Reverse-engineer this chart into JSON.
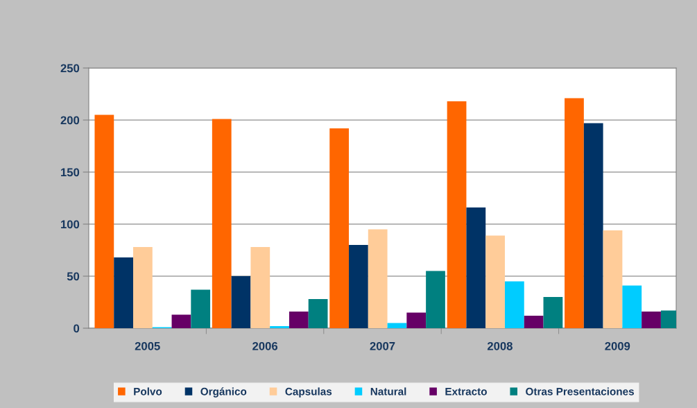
{
  "chart_data": {
    "type": "bar",
    "categories": [
      "2005",
      "2006",
      "2007",
      "2008",
      "2009"
    ],
    "series": [
      {
        "name": "Polvo",
        "color": "#ff6600",
        "values": [
          205,
          201,
          192,
          218,
          221
        ]
      },
      {
        "name": "Orgánico",
        "color": "#003366",
        "values": [
          68,
          50,
          80,
          116,
          197
        ]
      },
      {
        "name": "Capsulas",
        "color": "#ffcc99",
        "values": [
          78,
          78,
          95,
          89,
          94
        ]
      },
      {
        "name": "Natural",
        "color": "#00ccff",
        "values": [
          1,
          2,
          5,
          45,
          41
        ]
      },
      {
        "name": "Extracto",
        "color": "#660066",
        "values": [
          13,
          16,
          15,
          12,
          16
        ]
      },
      {
        "name": "Otras Presentaciones",
        "color": "#008080",
        "values": [
          37,
          28,
          55,
          30,
          17
        ]
      }
    ],
    "ylim": [
      0,
      250
    ],
    "yticks": [
      0,
      50,
      100,
      150,
      200,
      250
    ],
    "grid": "y",
    "legend": "bottom"
  }
}
